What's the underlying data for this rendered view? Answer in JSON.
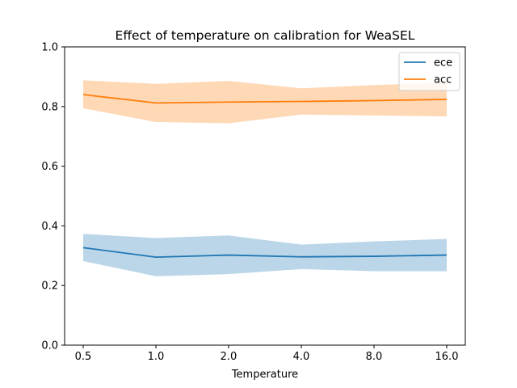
{
  "chart_data": {
    "type": "line",
    "title": "Effect of temperature on calibration for WeaSEL",
    "xlabel": "Temperature",
    "ylabel": "",
    "categories": [
      "0.5",
      "1.0",
      "2.0",
      "4.0",
      "8.0",
      "16.0"
    ],
    "ylim": [
      0,
      1
    ],
    "yticks": [
      "0.0",
      "0.2",
      "0.4",
      "0.6",
      "0.8",
      "1.0"
    ],
    "grid": false,
    "legend_position": "top-right",
    "series": [
      {
        "name": "ece",
        "color": "#1f77b4",
        "band_color": "#1f77b4",
        "values": [
          0.327,
          0.295,
          0.302,
          0.296,
          0.298,
          0.302
        ],
        "lower": [
          0.282,
          0.231,
          0.238,
          0.255,
          0.248,
          0.248
        ],
        "upper": [
          0.373,
          0.359,
          0.368,
          0.337,
          0.348,
          0.356
        ]
      },
      {
        "name": "acc",
        "color": "#ff7f0e",
        "band_color": "#ff7f0e",
        "values": [
          0.84,
          0.812,
          0.815,
          0.817,
          0.82,
          0.824
        ],
        "lower": [
          0.794,
          0.748,
          0.744,
          0.773,
          0.77,
          0.767
        ],
        "upper": [
          0.888,
          0.876,
          0.886,
          0.861,
          0.872,
          0.88
        ]
      }
    ]
  }
}
